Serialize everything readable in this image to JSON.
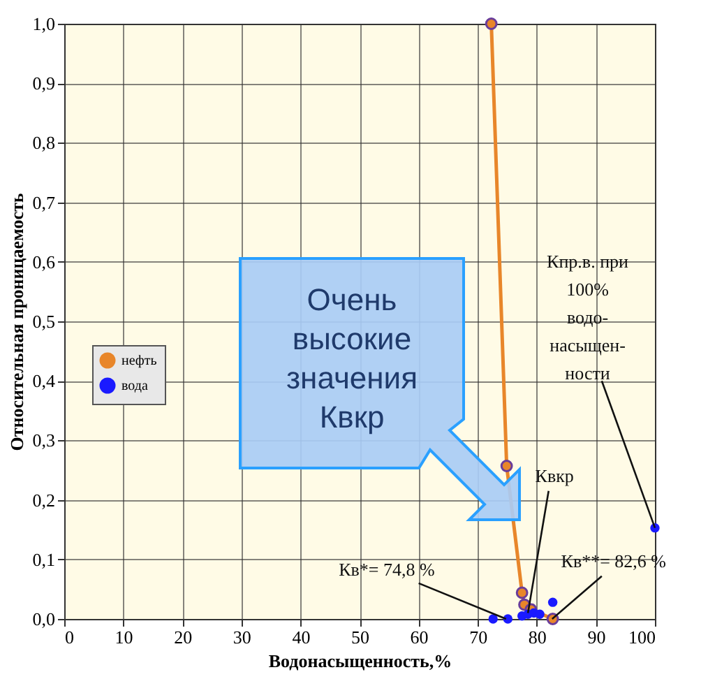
{
  "chart_data": {
    "type": "line",
    "xlabel": "Водонасыщенность,%",
    "ylabel": "Относительная проницаемость",
    "series": [
      {
        "name": "нефть",
        "color": "#e8862a",
        "marker": "circle",
        "x": [
          72.3,
          74.9,
          77.5,
          77.9,
          79.0,
          82.7
        ],
        "values": [
          1.0,
          0.257,
          0.044,
          0.024,
          0.016,
          0.0
        ]
      },
      {
        "name": "вода",
        "color": "#1a1aff",
        "type": "scatter",
        "marker": "circle",
        "x": [
          72.6,
          75.1,
          77.5,
          78.5,
          79.5,
          80.5,
          82.7,
          100
        ],
        "values": [
          0.0,
          0.0,
          0.005,
          0.008,
          0.01,
          0.008,
          0.028,
          0.153
        ]
      }
    ],
    "xlim": [
      0,
      100
    ],
    "xticks": [
      0,
      10,
      20,
      30,
      40,
      50,
      60,
      70,
      80,
      90,
      100
    ],
    "ylim": [
      0,
      1
    ],
    "yticks": [
      {
        "value": 0,
        "label": "0,0"
      },
      {
        "value": 0.1,
        "label": "0,1"
      },
      {
        "value": 0.2,
        "label": "0,2"
      },
      {
        "value": 0.3,
        "label": "0,3"
      },
      {
        "value": 0.4,
        "label": "0,4"
      },
      {
        "value": 0.5,
        "label": "0,5"
      },
      {
        "value": 0.6,
        "label": "0,6"
      },
      {
        "value": 0.7,
        "label": "0,7"
      },
      {
        "value": 0.8,
        "label": "0,8"
      },
      {
        "value": 0.9,
        "label": "0,9"
      },
      {
        "value": 1,
        "label": "1,0"
      }
    ],
    "grid": true,
    "legend": "left",
    "annotations": [
      {
        "text": "Квкр",
        "x": 78.5,
        "y": 0.01
      },
      {
        "text": "Кв*= 74,8 %",
        "x": 74.8,
        "y": 0
      },
      {
        "text": "Кв**= 82,6 %",
        "x": 82.6,
        "y": 0
      },
      {
        "text": "Кпр.в. при\n100%\nводо-\nнасыщен-\nности",
        "x": 100,
        "y": 0.153
      },
      "Очень\nвысокие\nзначения\nКвкр"
    ]
  }
}
